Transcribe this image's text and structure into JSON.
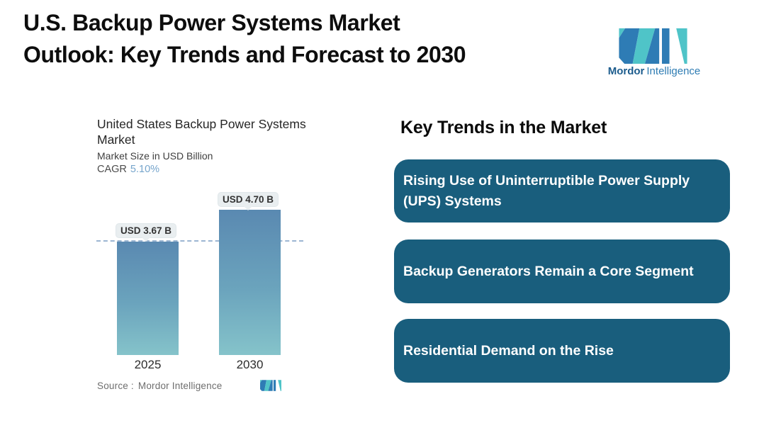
{
  "header": {
    "title_line1": "U.S. Backup Power Systems Market",
    "title_line2": "Outlook: Key Trends and Forecast to 2030",
    "logo": {
      "name_bold": "Mordor",
      "name_regular": "Intelligence"
    }
  },
  "chart": {
    "title_line1": "United States Backup Power Systems",
    "title_line2": "Market",
    "subtitle": "Market Size in USD Billion",
    "cagr_label": "CAGR",
    "cagr_value": "5.10%",
    "bars": [
      {
        "year": "2025",
        "label": "USD 3.67 B",
        "value": 3.67
      },
      {
        "year": "2030",
        "label": "USD 4.70 B",
        "value": 4.7
      }
    ],
    "source_label": "Source :",
    "source_value": "Mordor Intelligence"
  },
  "chart_data": {
    "type": "bar",
    "title": "United States Backup Power Systems Market",
    "subtitle": "Market Size in USD Billion",
    "cagr": "5.10%",
    "categories": [
      "2025",
      "2030"
    ],
    "values": [
      3.67,
      4.7
    ],
    "value_labels": [
      "USD 3.67 B",
      "USD 4.70 B"
    ],
    "xlabel": "",
    "ylabel": "Market Size in USD Billion",
    "ylim": [
      0,
      4.7
    ],
    "grid": false,
    "reference_line": 3.67,
    "annotations": [
      "horizontal dashed reference line at 2025 value (USD 3.67 B)"
    ],
    "legend_position": "none"
  },
  "trends": {
    "heading": "Key Trends in the Market",
    "cards": [
      {
        "text": "Rising Use of Uninterruptible Power Supply (UPS) Systems"
      },
      {
        "text": "Backup Generators Remain a Core Segment"
      },
      {
        "text": "Residential Demand on the Rise"
      }
    ]
  },
  "colors": {
    "card_background": "#195e7d",
    "card_text": "#ffffff",
    "bar_gradient_top": "#5a89b1",
    "bar_gradient_bottom": "#85c3ca",
    "dashed_line": "#9db6d2",
    "cagr_accent": "#76a5cc",
    "pill_background": "#e9eef0",
    "logo_blue": "#2e7cb5",
    "logo_teal": "#4fc4c8",
    "title_text": "#0d0d0d",
    "source_text": "#6e6e6e"
  }
}
